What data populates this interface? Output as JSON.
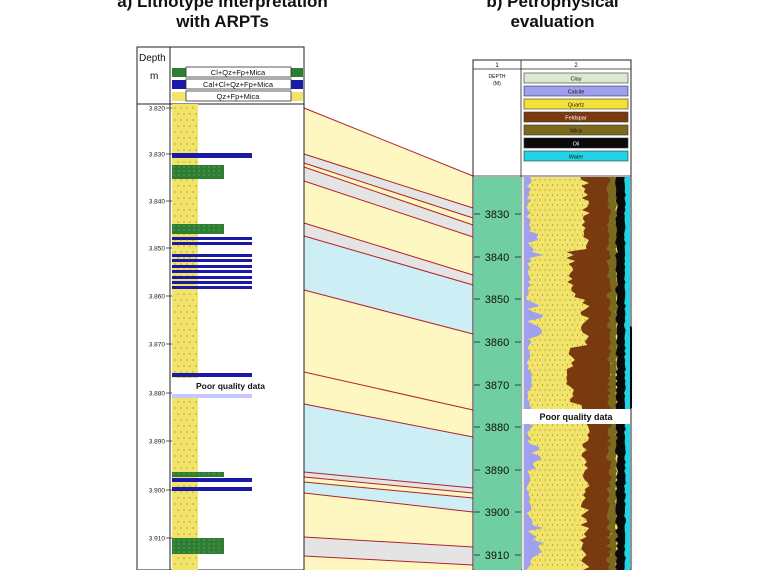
{
  "titles": {
    "left_line1": "a)  Lithotype interpretation",
    "left_line2": "with ARPTs",
    "right_line1": "b) Petrophysical",
    "right_line2": "evaluation"
  },
  "left_panel": {
    "depth_header": "Depth",
    "unit": "m",
    "legend": [
      {
        "label": "Cl+Qz+Fp+Mica",
        "color": "#2e7d32"
      },
      {
        "label": "Cal+Cl+Qz+Fp+Mica",
        "color": "#1a1aa6"
      },
      {
        "label": "Qz+Fp+Mica",
        "color": "#f2e36b"
      }
    ],
    "ticks": [
      "3.820",
      "3.830",
      "3.840",
      "3.850",
      "3.860",
      "3.870",
      "3.880",
      "3.890",
      "3.900",
      "3.910"
    ],
    "poor_quality_label": "Poor quality data"
  },
  "right_panel": {
    "track_numbers": [
      "1",
      "2"
    ],
    "depth_header": "DEPTH",
    "unit": "(M)",
    "legend": [
      {
        "label": "Clay",
        "color": "#d9ead3"
      },
      {
        "label": "Calcite",
        "color": "#9fa0ef"
      },
      {
        "label": "Quartz",
        "color": "#f4e23a"
      },
      {
        "label": "Feldspar",
        "color": "#7a3a10"
      },
      {
        "label": "Mica",
        "color": "#7b6a1e"
      },
      {
        "label": "Oil",
        "color": "#0a0a0a"
      },
      {
        "label": "Water",
        "color": "#22d3e6"
      }
    ],
    "ticks": [
      "3830",
      "3840",
      "3850",
      "3860",
      "3870",
      "3880",
      "3890",
      "3900",
      "3910"
    ],
    "poor_quality_label": "Poor quality data"
  },
  "colors": {
    "zone_yellow": "#fff7c2",
    "zone_blue": "#cdeef5",
    "zone_grey": "#e4e4e4",
    "correlation_line": "#b2222a",
    "depth_track": "#6fcfa3",
    "left_column_yellow": "#f2e36b",
    "clay_green": "#2e7d32",
    "calcite_blue": "#1a1aa6"
  }
}
